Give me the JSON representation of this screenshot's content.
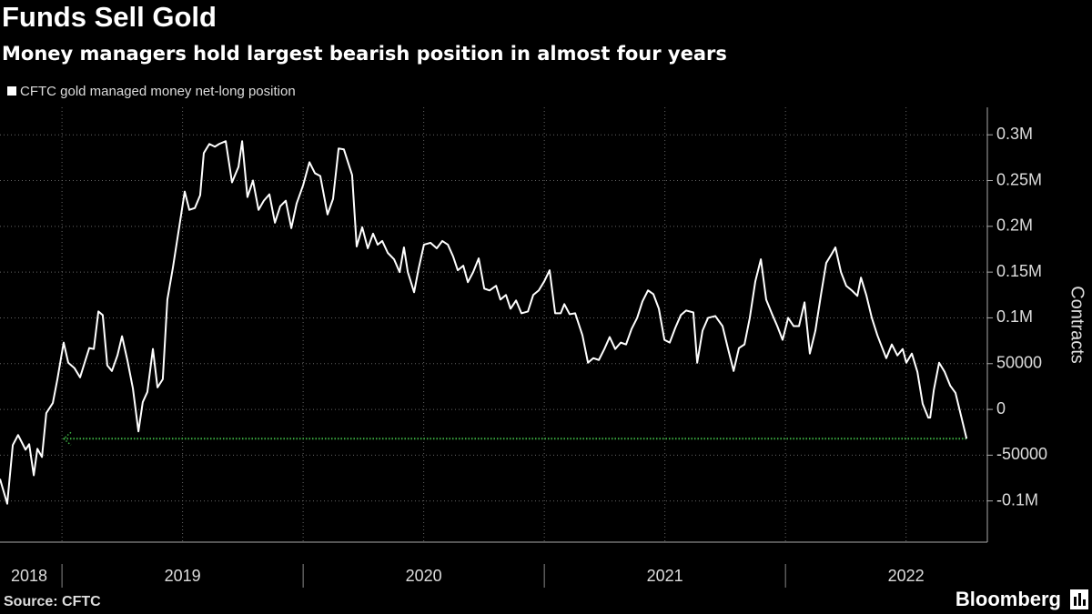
{
  "chart_data": {
    "type": "line",
    "title": "Funds Sell Gold",
    "subtitle": "Money managers hold largest bearish position in almost four years",
    "y_label": "Contracts",
    "source": "Source: CFTC",
    "brand": "Bloomberg",
    "xlim": [
      2018.743,
      2022.788
    ],
    "ylim": [
      -145000,
      330000
    ],
    "xticks": [
      {
        "value": 2018.5,
        "label": "2018"
      },
      {
        "value": 2019.5,
        "label": "2019"
      },
      {
        "value": 2020.5,
        "label": "2020"
      },
      {
        "value": 2021.5,
        "label": "2021"
      },
      {
        "value": 2022.5,
        "label": "2022"
      }
    ],
    "yticks": [
      {
        "value": 300000,
        "label": "0.3M"
      },
      {
        "value": 250000,
        "label": "0.25M"
      },
      {
        "value": 200000,
        "label": "0.2M"
      },
      {
        "value": 150000,
        "label": "0.15M"
      },
      {
        "value": 100000,
        "label": "0.1M"
      },
      50000,
      0,
      -50000,
      {
        "value": -100000,
        "label": "-0.1M"
      }
    ],
    "grid": true,
    "reference_line": {
      "value": -32000,
      "x": [
        2019.007,
        2022.751
      ],
      "color": "#3cb043"
    },
    "x": [
      2018.743,
      2018.773,
      2018.796,
      2018.818,
      2018.849,
      2018.864,
      2018.883,
      2018.898,
      2018.917,
      2018.935,
      2018.962,
      2018.981,
      2019.007,
      2019.026,
      2019.052,
      2019.075,
      2019.094,
      2019.113,
      2019.132,
      2019.151,
      2019.169,
      2019.188,
      2019.207,
      2019.23,
      2019.249,
      2019.271,
      2019.294,
      2019.317,
      2019.335,
      2019.354,
      2019.377,
      2019.396,
      2019.418,
      2019.437,
      2019.46,
      2019.483,
      2019.509,
      2019.528,
      2019.551,
      2019.573,
      2019.588,
      2019.611,
      2019.634,
      2019.652,
      2019.679,
      2019.705,
      2019.732,
      2019.747,
      2019.769,
      2019.792,
      2019.815,
      2019.837,
      2019.86,
      2019.883,
      2019.905,
      2019.928,
      2019.951,
      2019.973,
      2020.0,
      2020.026,
      2020.049,
      2020.071,
      2020.101,
      2020.124,
      2020.147,
      2020.169,
      2020.203,
      2020.222,
      2020.245,
      2020.268,
      2020.29,
      2020.309,
      2020.328,
      2020.351,
      2020.377,
      2020.4,
      2020.418,
      2020.434,
      2020.46,
      2020.479,
      2020.501,
      2020.528,
      2020.554,
      2020.577,
      2020.6,
      2020.622,
      2020.641,
      2020.664,
      2020.683,
      2020.705,
      2020.728,
      2020.751,
      2020.773,
      2020.8,
      2020.818,
      2020.841,
      2020.86,
      2020.883,
      2020.905,
      2020.932,
      2020.954,
      2020.977,
      2021.0,
      2021.022,
      2021.045,
      2021.068,
      2021.083,
      2021.105,
      2021.128,
      2021.158,
      2021.181,
      2021.203,
      2021.226,
      2021.249,
      2021.271,
      2021.294,
      2021.317,
      2021.339,
      2021.362,
      2021.385,
      2021.407,
      2021.43,
      2021.452,
      2021.475,
      2021.498,
      2021.52,
      2021.543,
      2021.566,
      2021.588,
      2021.618,
      2021.634,
      2021.656,
      2021.679,
      2021.709,
      2021.739,
      2021.762,
      2021.785,
      2021.807,
      2021.83,
      2021.852,
      2021.875,
      2021.898,
      2021.92,
      2021.943,
      2021.966,
      2021.988,
      2022.011,
      2022.034,
      2022.056,
      2022.079,
      2022.101,
      2022.124,
      2022.147,
      2022.169,
      2022.192,
      2022.207,
      2022.23,
      2022.252,
      2022.275,
      2022.298,
      2022.313,
      2022.335,
      2022.358,
      2022.381,
      2022.403,
      2022.418,
      2022.441,
      2022.464,
      2022.486,
      2022.501,
      2022.524,
      2022.547,
      2022.569,
      2022.592,
      2022.6,
      2022.615,
      2022.637,
      2022.66,
      2022.683,
      2022.705,
      2022.728,
      2022.751
    ],
    "series": [
      {
        "name": "CFTC gold managed money net-long position",
        "color": "#ffffff",
        "values": [
          -76000,
          -103000,
          -39000,
          -28000,
          -44000,
          -38000,
          -72000,
          -43000,
          -52000,
          -4000,
          7000,
          33000,
          73000,
          51000,
          45000,
          35000,
          51000,
          67000,
          66000,
          107000,
          103000,
          48000,
          42000,
          59000,
          80000,
          54000,
          23000,
          -24000,
          8000,
          19000,
          66000,
          24000,
          33000,
          120000,
          155000,
          194000,
          238000,
          218000,
          220000,
          234000,
          280000,
          290000,
          287000,
          290000,
          293000,
          248000,
          265000,
          293000,
          232000,
          250000,
          218000,
          228000,
          235000,
          204000,
          222000,
          228000,
          198000,
          225000,
          245000,
          270000,
          258000,
          255000,
          213000,
          230000,
          285000,
          284000,
          256000,
          178000,
          199000,
          176000,
          192000,
          180000,
          184000,
          171000,
          164000,
          150000,
          177000,
          150000,
          128000,
          154000,
          180000,
          182000,
          176000,
          184000,
          180000,
          167000,
          152000,
          157000,
          139000,
          150000,
          165000,
          132000,
          130000,
          135000,
          120000,
          125000,
          110000,
          119000,
          105000,
          107000,
          125000,
          130000,
          140000,
          152000,
          105000,
          105000,
          115000,
          104000,
          105000,
          81000,
          51000,
          56000,
          54000,
          66000,
          79000,
          66000,
          73000,
          71000,
          88000,
          100000,
          118000,
          130000,
          126000,
          110000,
          76000,
          73000,
          89000,
          103000,
          108000,
          106000,
          51000,
          86000,
          100000,
          102000,
          91000,
          66000,
          42000,
          67000,
          71000,
          100000,
          140000,
          164000,
          120000,
          105000,
          91000,
          76000,
          100000,
          91000,
          91000,
          117000,
          61000,
          86000,
          125000,
          160000,
          170000,
          177000,
          150000,
          135000,
          130000,
          124000,
          144000,
          125000,
          100000,
          81000,
          66000,
          56000,
          71000,
          59000,
          66000,
          51000,
          61000,
          41000,
          6000,
          -9000,
          -9000,
          21000,
          51000,
          41000,
          26000,
          18000,
          -7000,
          -32000
        ]
      }
    ]
  }
}
